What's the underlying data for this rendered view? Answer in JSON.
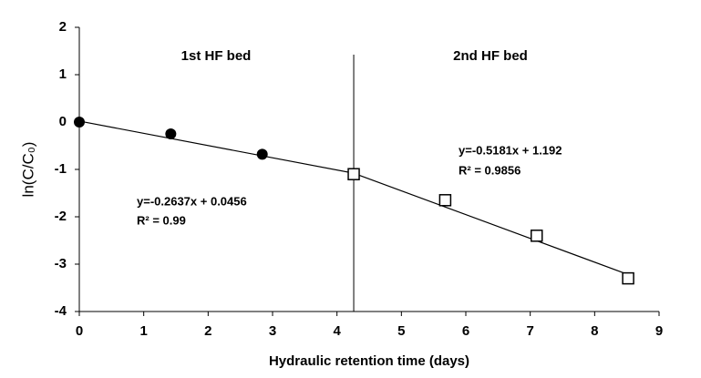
{
  "chart_data": {
    "type": "scatter",
    "x_label": "Hydraulic retention time (days)",
    "y_label": "ln(C/C₀)",
    "annotations": [
      "1st HF bed",
      "2nd HF bed",
      "y=-0.2637x + 0.0456",
      "R² = 0.99",
      "y=-0.5181x + 1.192",
      "R² = 0.9856"
    ],
    "series": [
      {
        "marker": "filled-circle",
        "color": "#000000",
        "x": [
          0,
          1.42,
          2.84
        ],
        "values": [
          0,
          -0.25,
          -0.68
        ]
      },
      {
        "marker": "open-square",
        "color": "#000000",
        "x": [
          4.26,
          5.68,
          7.1,
          8.52
        ],
        "values": [
          -1.1,
          -1.65,
          -2.4,
          -3.3
        ]
      }
    ],
    "trendlines": [
      {
        "x": [
          0,
          4.26
        ],
        "values": [
          0.02,
          -1.08
        ]
      },
      {
        "x": [
          4.26,
          8.52
        ],
        "values": [
          -1.08,
          -3.22
        ]
      }
    ],
    "divider_x": 4.26,
    "xlim": [
      0,
      9
    ],
    "xticks": [
      0,
      1,
      2,
      3,
      4,
      5,
      6,
      7,
      8,
      9
    ],
    "ylim": [
      -4,
      2
    ],
    "yticks": [
      -4,
      -3,
      -2,
      -1,
      0,
      1,
      2
    ],
    "grid": false
  }
}
